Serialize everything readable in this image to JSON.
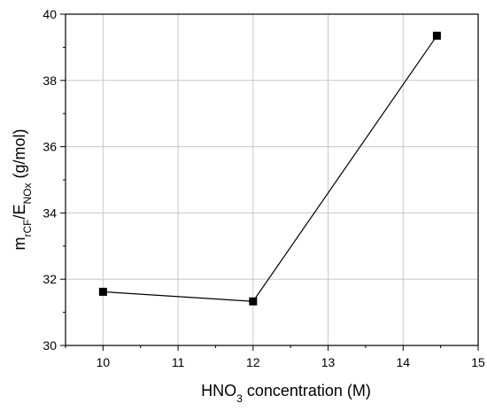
{
  "chart_data": {
    "type": "line",
    "title": "",
    "xlabel": {
      "main": "HNO",
      "sub": "3",
      "rest": " concentration (M)"
    },
    "ylabel": {
      "m": "m",
      "m_sub": "rCF",
      "slash": "/E",
      "e_sub": "NOx",
      "rest": " (g/mol)"
    },
    "xlim": [
      9.5,
      15
    ],
    "ylim": [
      30,
      40
    ],
    "x_ticks": [
      10,
      11,
      12,
      13,
      14,
      15
    ],
    "y_ticks": [
      30,
      32,
      34,
      36,
      38,
      40
    ],
    "grid": true,
    "series": [
      {
        "x": [
          10,
          12,
          14.45
        ],
        "y": [
          31.62,
          31.33,
          39.35
        ],
        "marker": "square",
        "color": "#000000"
      }
    ]
  }
}
